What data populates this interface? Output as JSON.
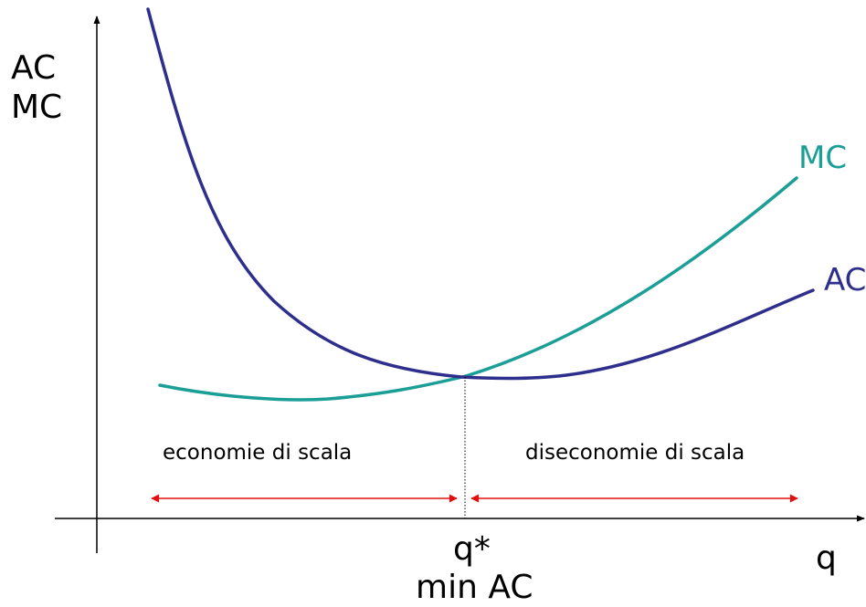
{
  "axes": {
    "y_label_line1": "AC",
    "y_label_line2": "MC",
    "x_label": "q"
  },
  "curves": {
    "ac": {
      "label": "AC",
      "color": "#2e2e8c"
    },
    "mc": {
      "label": "MC",
      "color": "#1a9e96"
    }
  },
  "markers": {
    "q_star_label": "q*",
    "q_star_sublabel": "min AC"
  },
  "regions": {
    "left_label": "economie di scala",
    "right_label": "diseconomie di scala",
    "arrow_color": "#e01010"
  },
  "colors": {
    "axis": "#000000"
  }
}
